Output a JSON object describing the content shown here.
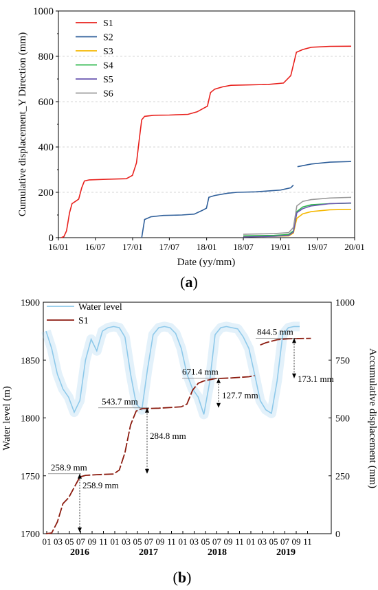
{
  "panel_a_label": {
    "open": "(",
    "letter": "a",
    "close": ")"
  },
  "panel_b_label": {
    "open": "(",
    "letter": "b",
    "close": ")"
  },
  "colors": {
    "S1": "#e8201c",
    "S2": "#2f5f9a",
    "S3": "#f5b700",
    "S4": "#2db84b",
    "S5": "#6a56b0",
    "S6": "#9a9a9a",
    "water": "#8ec9ea",
    "s1b": "#8b1a0e"
  },
  "chart_data": [
    {
      "type": "line",
      "xlabel": "Date (yy/mm)",
      "ylabel": "Cumulative displacement_Y Direction (mm)",
      "x_ticks": [
        "16/01",
        "16/07",
        "17/01",
        "17/07",
        "18/01",
        "18/07",
        "19/01",
        "19/07",
        "20/01"
      ],
      "y_ticks": [
        "0",
        "200",
        "400",
        "600",
        "800",
        "1000"
      ],
      "ylim": [
        0,
        1000
      ],
      "grid": "horizontal dashed",
      "legend_position": "top-left",
      "series": [
        {
          "name": "S1",
          "points": [
            [
              "2016-01-15",
              0
            ],
            [
              "2016-01-28",
              5
            ],
            [
              "2016-02-10",
              30
            ],
            [
              "2016-02-25",
              110
            ],
            [
              "2016-03-08",
              150
            ],
            [
              "2016-03-25",
              160
            ],
            [
              "2016-04-10",
              170
            ],
            [
              "2016-04-25",
              220
            ],
            [
              "2016-05-08",
              250
            ],
            [
              "2016-06-01",
              255
            ],
            [
              "2016-09-01",
              258
            ],
            [
              "2016-12-01",
              260
            ],
            [
              "2016-12-31",
              275
            ],
            [
              "2017-01-20",
              330
            ],
            [
              "2017-02-05",
              450
            ],
            [
              "2017-02-15",
              520
            ],
            [
              "2017-03-01",
              535
            ],
            [
              "2017-04-15",
              540
            ],
            [
              "2017-07-01",
              541
            ],
            [
              "2017-10-01",
              544
            ],
            [
              "2017-11-15",
              555
            ],
            [
              "2017-12-15",
              570
            ],
            [
              "2018-01-05",
              580
            ],
            [
              "2018-01-20",
              640
            ],
            [
              "2018-02-10",
              655
            ],
            [
              "2018-03-20",
              665
            ],
            [
              "2018-05-01",
              672
            ],
            [
              "2018-08-01",
              674
            ],
            [
              "2018-11-01",
              676
            ],
            [
              "2019-01-15",
              682
            ],
            [
              "2019-02-20",
              715
            ],
            [
              "2019-03-20",
              818
            ],
            [
              "2019-04-20",
              830
            ],
            [
              "2019-06-01",
              840
            ],
            [
              "2019-09-01",
              844
            ],
            [
              "2019-12-15",
              844.5
            ]
          ]
        },
        {
          "name": "S2",
          "points": [
            [
              "2017-02-15",
              0
            ],
            [
              "2017-03-01",
              80
            ],
            [
              "2017-04-01",
              92
            ],
            [
              "2017-06-01",
              98
            ],
            [
              "2017-09-01",
              100
            ],
            [
              "2017-11-01",
              104
            ],
            [
              "2017-12-10",
              120
            ],
            [
              "2017-12-31",
              130
            ],
            [
              "2018-01-12",
              178
            ],
            [
              "2018-02-10",
              186
            ],
            [
              "2018-04-15",
              196
            ],
            [
              "2018-06-01",
              200
            ],
            [
              "2018-09-01",
              202
            ],
            [
              "2019-01-01",
              210
            ],
            [
              "2019-02-20",
              220
            ],
            [
              "2019-03-05",
              232
            ],
            null,
            [
              "2019-03-25",
              313
            ],
            [
              "2019-06-01",
              325
            ],
            [
              "2019-09-01",
              333
            ],
            [
              "2019-12-15",
              336
            ]
          ]
        },
        {
          "name": "S3",
          "points": [
            [
              "2018-07-01",
              5
            ],
            [
              "2018-12-01",
              6
            ],
            [
              "2019-02-10",
              8
            ],
            [
              "2019-03-05",
              20
            ],
            [
              "2019-03-22",
              85
            ],
            [
              "2019-04-20",
              105
            ],
            [
              "2019-06-01",
              115
            ],
            [
              "2019-09-01",
              123
            ],
            [
              "2019-12-15",
              125
            ]
          ]
        },
        {
          "name": "S4",
          "points": [
            [
              "2018-07-01",
              8
            ],
            [
              "2018-12-01",
              10
            ],
            [
              "2019-02-10",
              14
            ],
            [
              "2019-03-05",
              30
            ],
            [
              "2019-03-22",
              115
            ],
            [
              "2019-04-20",
              135
            ],
            [
              "2019-06-01",
              145
            ],
            [
              "2019-09-01",
              150
            ],
            [
              "2019-12-15",
              152
            ]
          ]
        },
        {
          "name": "S5",
          "points": [
            [
              "2018-07-01",
              3
            ],
            [
              "2018-12-01",
              6
            ],
            [
              "2019-02-10",
              10
            ],
            [
              "2019-03-05",
              25
            ],
            [
              "2019-03-22",
              110
            ],
            [
              "2019-04-20",
              128
            ],
            [
              "2019-06-01",
              140
            ],
            [
              "2019-09-01",
              150
            ],
            [
              "2019-12-15",
              153
            ]
          ]
        },
        {
          "name": "S6",
          "points": [
            [
              "2018-07-01",
              15
            ],
            [
              "2018-12-01",
              18
            ],
            [
              "2019-02-10",
              22
            ],
            [
              "2019-03-05",
              45
            ],
            [
              "2019-03-22",
              140
            ],
            [
              "2019-04-20",
              160
            ],
            [
              "2019-06-01",
              168
            ],
            [
              "2019-09-01",
              175
            ],
            [
              "2019-12-15",
              178
            ]
          ]
        }
      ]
    },
    {
      "type": "line",
      "xlabel_months": [
        "01",
        "03",
        "05",
        "07",
        "09",
        "11",
        "01",
        "03",
        "05",
        "07",
        "09",
        "11",
        "01",
        "03",
        "05",
        "07",
        "09",
        "11",
        "01",
        "03",
        "05",
        "07",
        "09",
        "11"
      ],
      "xlabel_years": [
        "2016",
        "2017",
        "2018",
        "2019"
      ],
      "ylabel_left": "Water level (m)",
      "ylabel_right": "Accumulative displacement (mm)",
      "y_left_ticks": [
        "1700",
        "1750",
        "1800",
        "1850",
        "1900"
      ],
      "y_right_ticks": [
        "0",
        "250",
        "500",
        "750",
        "1000"
      ],
      "ylim_left": [
        1700,
        1900
      ],
      "ylim_right": [
        0,
        1000
      ],
      "legend_position": "top-left",
      "series": [
        {
          "name": "Water level",
          "axis": "left",
          "monthly_from": "2016-01",
          "monthly_values": [
            1875,
            1860,
            1838,
            1825,
            1818,
            1805,
            1815,
            1850,
            1868,
            1858,
            1875,
            1878,
            1879,
            1878,
            1870,
            1838,
            1812,
            1807,
            1842,
            1872,
            1878,
            1879,
            1878,
            1873,
            1860,
            1838,
            1825,
            1818,
            1803,
            1830,
            1872,
            1878,
            1879,
            1878,
            1877,
            1870,
            1860,
            1838,
            1815,
            1807,
            1804,
            1832,
            1872,
            1878,
            1879,
            1879
          ]
        },
        {
          "name": "S1",
          "axis": "right",
          "points": [
            [
              "2016-01",
              0
            ],
            [
              "2016-02",
              3
            ],
            [
              "2016-03",
              50
            ],
            [
              "2016-04",
              130
            ],
            [
              "2016-05",
              155
            ],
            [
              "2016-06",
              200
            ],
            [
              "2016-07",
              245
            ],
            [
              "2016-08",
              252
            ],
            [
              "2016-10",
              255
            ],
            [
              "2017-01",
              258
            ],
            [
              "2017-02",
              275
            ],
            [
              "2017-03",
              350
            ],
            [
              "2017-04",
              470
            ],
            [
              "2017-05",
              530
            ],
            [
              "2017-06",
              540
            ],
            [
              "2017-09",
              542
            ],
            [
              "2018-01",
              548
            ],
            [
              "2018-02",
              560
            ],
            [
              "2018-03",
              620
            ],
            [
              "2018-04",
              650
            ],
            [
              "2018-05",
              660
            ],
            [
              "2018-07",
              670
            ],
            [
              "2018-10",
              673
            ],
            [
              "2019-01",
              678
            ],
            [
              "2019-02",
              683
            ],
            null,
            [
              "2019-03",
              815
            ],
            [
              "2019-04",
              825
            ],
            [
              "2019-06",
              838
            ],
            [
              "2019-08",
              842
            ],
            [
              "2019-12",
              844
            ]
          ]
        }
      ],
      "annotations": [
        "258.9 mm",
        "258.9 mm",
        "543.7 mm",
        "284.8 mm",
        "671.4 mm",
        "127.7 mm",
        "844.5 mm",
        "173.1 mm"
      ]
    }
  ]
}
